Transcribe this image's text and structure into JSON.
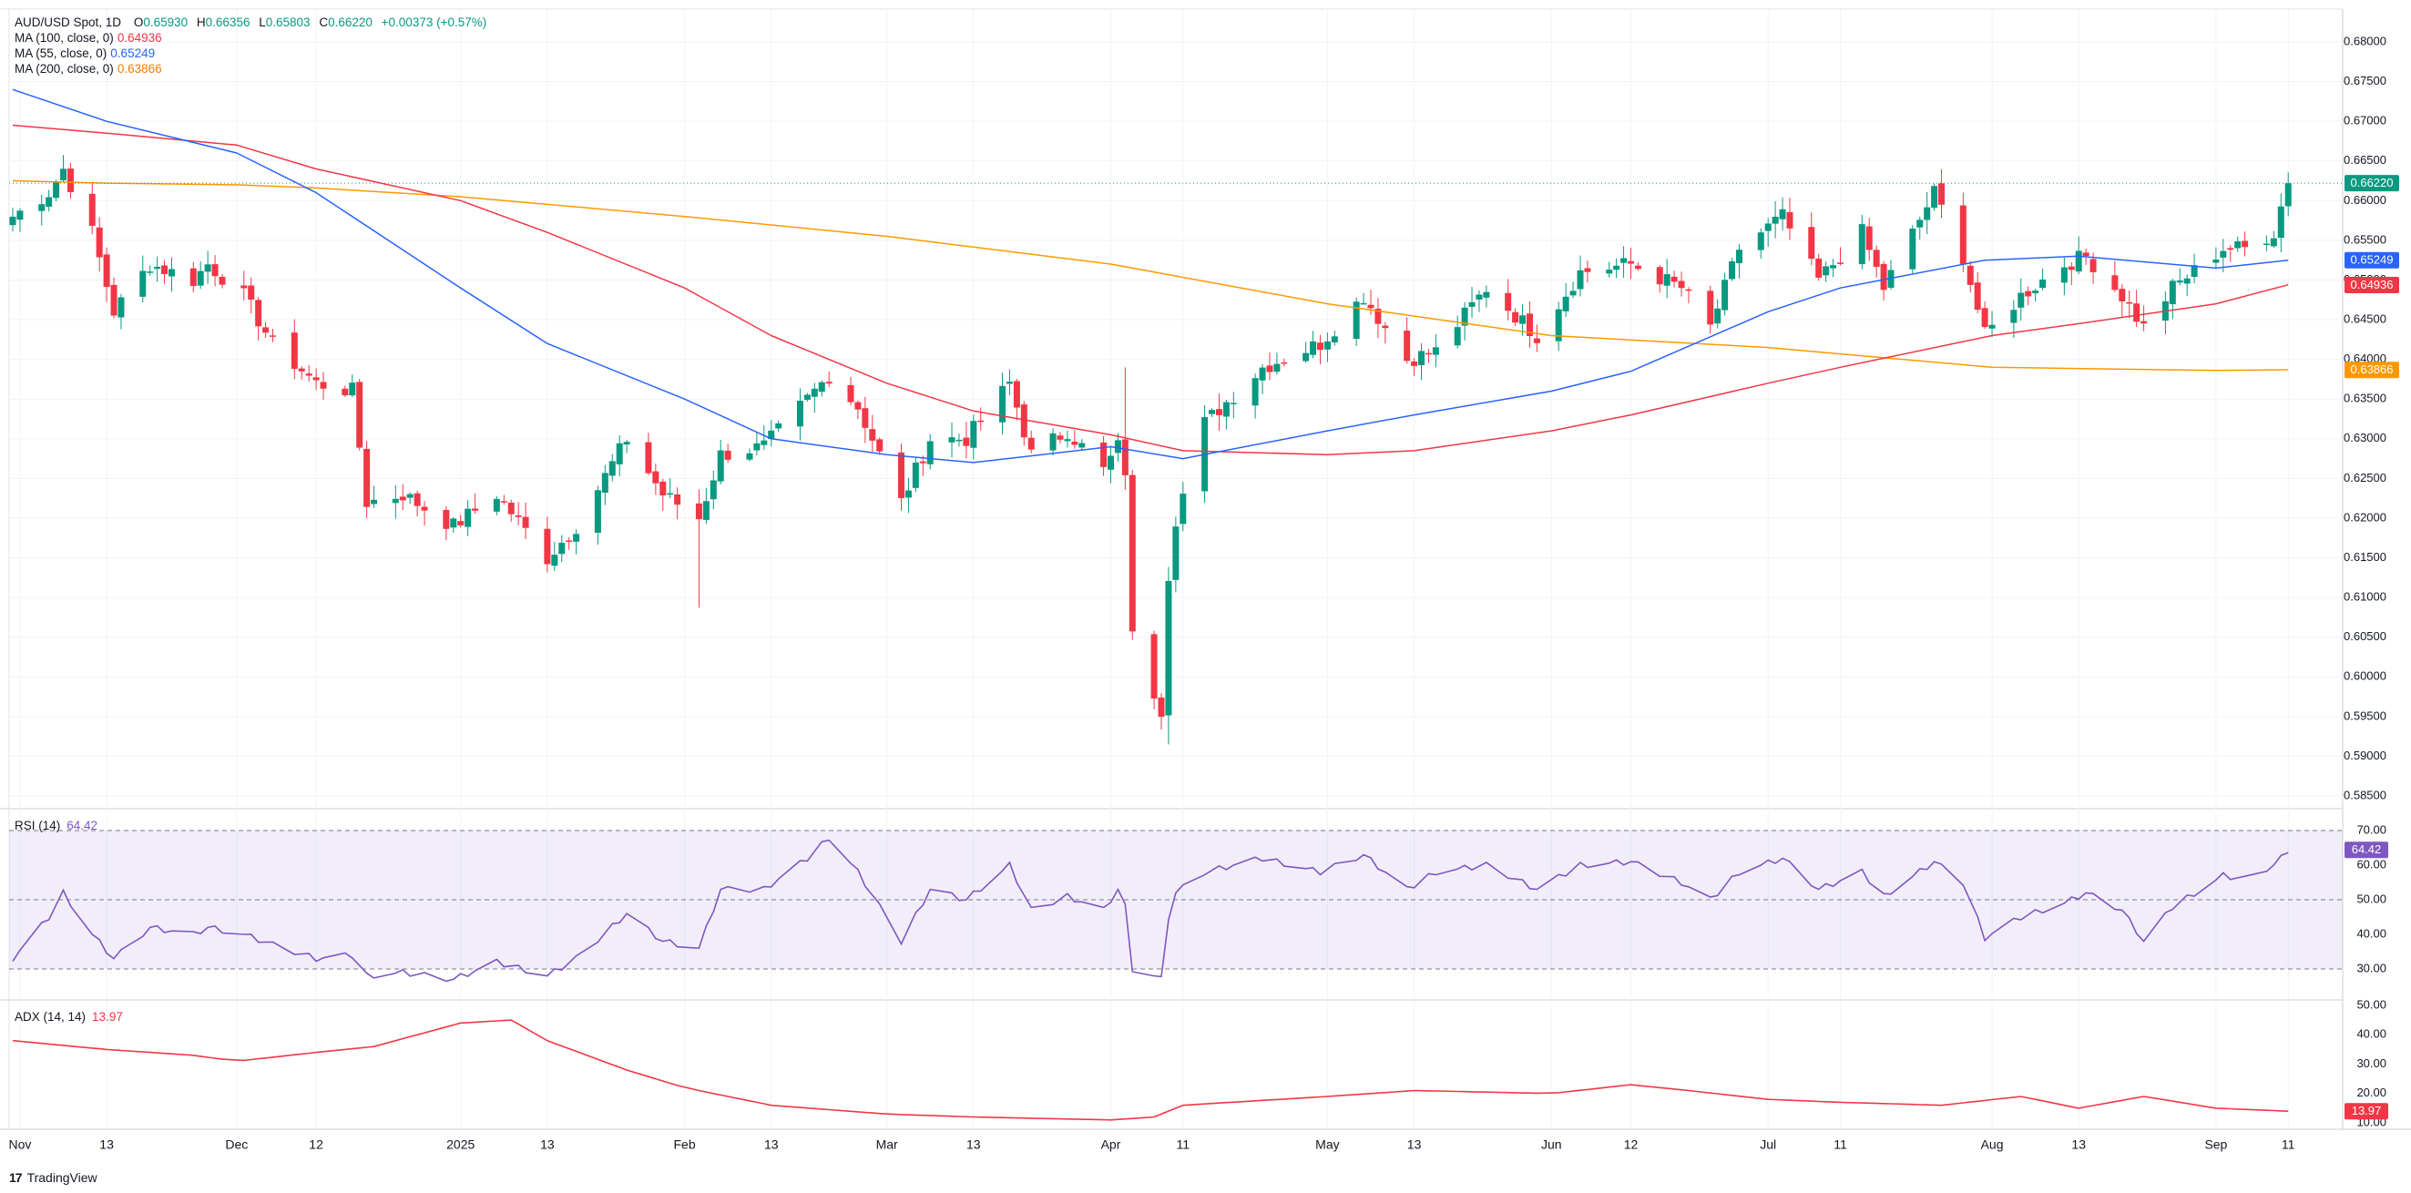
{
  "header": {
    "symbol": "AUD/USD Spot, 1D",
    "o_label": "O",
    "o": "0.65930",
    "h_label": "H",
    "h": "0.66356",
    "l_label": "L",
    "l": "0.65803",
    "c_label": "C",
    "c": "0.66220",
    "change": "+0.00373 (+0.57%)"
  },
  "legends": [
    {
      "label": "MA (100, close, 0)",
      "value": "0.64936",
      "color": "#f23645"
    },
    {
      "label": "MA (55, close, 0)",
      "value": "0.65249",
      "color": "#2962ff"
    },
    {
      "label": "MA (200, close, 0)",
      "value": "0.63866",
      "color": "#ff9800"
    }
  ],
  "rsi_legend": {
    "label": "RSI (14)",
    "value": "64.42",
    "color": "#7e57c2"
  },
  "adx_legend": {
    "label": "ADX (14, 14)",
    "value": "13.97",
    "color": "#f23645"
  },
  "branding": {
    "name": "TradingView"
  },
  "colors": {
    "up": "#089981",
    "down": "#f23645",
    "ma55": "#2962ff",
    "ma100": "#f23645",
    "ma200": "#ff9800",
    "rsi": "#7e57c2",
    "adx": "#f23645",
    "last": "#089981"
  },
  "chart_data": [
    {
      "type": "candlestick",
      "title": "AUD/USD Spot, 1D",
      "ylim": [
        0.5825,
        0.6825
      ],
      "y_ticks": [
        "0.68000",
        "0.67500",
        "0.67000",
        "0.66500",
        "0.66000",
        "0.65500",
        "0.65000",
        "0.64500",
        "0.64000",
        "0.63500",
        "0.63000",
        "0.62500",
        "0.62000",
        "0.61500",
        "0.61000",
        "0.60500",
        "0.60000",
        "0.59500",
        "0.59000",
        "0.58500"
      ],
      "x_ticks": [
        {
          "label": "Nov",
          "date": "2024-11-01"
        },
        {
          "label": "13",
          "date": "2024-11-13"
        },
        {
          "label": "Dec",
          "date": "2024-12-01"
        },
        {
          "label": "12",
          "date": "2024-12-12"
        },
        {
          "label": "2025",
          "date": "2025-01-01"
        },
        {
          "label": "13",
          "date": "2025-01-13"
        },
        {
          "label": "Feb",
          "date": "2025-02-01"
        },
        {
          "label": "13",
          "date": "2025-02-13"
        },
        {
          "label": "Mar",
          "date": "2025-03-01"
        },
        {
          "label": "13",
          "date": "2025-03-13"
        },
        {
          "label": "Apr",
          "date": "2025-04-01"
        },
        {
          "label": "11",
          "date": "2025-04-11"
        },
        {
          "label": "May",
          "date": "2025-05-01"
        },
        {
          "label": "13",
          "date": "2025-05-13"
        },
        {
          "label": "Jun",
          "date": "2025-06-01"
        },
        {
          "label": "12",
          "date": "2025-06-12"
        },
        {
          "label": "Jul",
          "date": "2025-07-01"
        },
        {
          "label": "11",
          "date": "2025-07-11"
        },
        {
          "label": "Aug",
          "date": "2025-08-01"
        },
        {
          "label": "13",
          "date": "2025-08-13"
        },
        {
          "label": "Sep",
          "date": "2025-09-01"
        },
        {
          "label": "11",
          "date": "2025-09-11"
        }
      ],
      "last_labels": [
        {
          "value": "0.66220",
          "color": "#089981"
        },
        {
          "value": "0.65249",
          "color": "#2962ff"
        },
        {
          "value": "0.64936",
          "color": "#f23645"
        },
        {
          "value": "0.63866",
          "color": "#ff9800"
        }
      ],
      "close_anchors": [
        [
          "2024-10-31",
          0.658
        ],
        [
          "2024-11-05",
          0.661
        ],
        [
          "2024-11-07",
          0.664
        ],
        [
          "2024-11-11",
          0.656
        ],
        [
          "2024-11-14",
          0.646
        ],
        [
          "2024-11-19",
          0.652
        ],
        [
          "2024-11-25",
          0.65
        ],
        [
          "2024-11-27",
          0.652
        ],
        [
          "2024-12-02",
          0.648
        ],
        [
          "2024-12-06",
          0.642
        ],
        [
          "2024-12-12",
          0.637
        ],
        [
          "2024-12-17",
          0.636
        ],
        [
          "2024-12-19",
          0.622
        ],
        [
          "2024-12-24",
          0.623
        ],
        [
          "2024-12-31",
          0.619
        ],
        [
          "2025-01-06",
          0.623
        ],
        [
          "2025-01-13",
          0.615
        ],
        [
          "2025-01-17",
          0.619
        ],
        [
          "2025-01-24",
          0.63
        ],
        [
          "2025-01-29",
          0.623
        ],
        [
          "2025-02-03",
          0.62
        ],
        [
          "2025-02-06",
          0.628
        ],
        [
          "2025-02-12",
          0.629
        ],
        [
          "2025-02-18",
          0.635
        ],
        [
          "2025-02-21",
          0.638
        ],
        [
          "2025-02-25",
          0.634
        ],
        [
          "2025-03-03",
          0.622
        ],
        [
          "2025-03-07",
          0.63
        ],
        [
          "2025-03-12",
          0.63
        ],
        [
          "2025-03-18",
          0.637
        ],
        [
          "2025-03-21",
          0.628
        ],
        [
          "2025-03-26",
          0.631
        ],
        [
          "2025-03-31",
          0.626
        ],
        [
          "2025-04-02",
          0.629
        ],
        [
          "2025-04-03",
          0.626
        ],
        [
          "2025-04-04",
          0.605
        ],
        [
          "2025-04-07",
          0.598
        ],
        [
          "2025-04-08",
          0.596
        ],
        [
          "2025-04-09",
          0.613
        ],
        [
          "2025-04-10",
          0.62
        ],
        [
          "2025-04-14",
          0.632
        ],
        [
          "2025-04-22",
          0.639
        ],
        [
          "2025-04-30",
          0.642
        ],
        [
          "2025-05-06",
          0.648
        ],
        [
          "2025-05-12",
          0.64
        ],
        [
          "2025-05-16",
          0.641
        ],
        [
          "2025-05-23",
          0.649
        ],
        [
          "2025-05-30",
          0.643
        ],
        [
          "2025-06-05",
          0.651
        ],
        [
          "2025-06-12",
          0.652
        ],
        [
          "2025-06-19",
          0.649
        ],
        [
          "2025-06-23",
          0.644
        ],
        [
          "2025-06-27",
          0.654
        ],
        [
          "2025-07-03",
          0.658
        ],
        [
          "2025-07-08",
          0.65
        ],
        [
          "2025-07-14",
          0.656
        ],
        [
          "2025-07-17",
          0.649
        ],
        [
          "2025-07-24",
          0.661
        ],
        [
          "2025-07-28",
          0.653
        ],
        [
          "2025-07-31",
          0.643
        ],
        [
          "2025-08-05",
          0.648
        ],
        [
          "2025-08-11",
          0.652
        ],
        [
          "2025-08-14",
          0.653
        ],
        [
          "2025-08-19",
          0.648
        ],
        [
          "2025-08-22",
          0.644
        ],
        [
          "2025-08-26",
          0.649
        ],
        [
          "2025-09-02",
          0.654
        ],
        [
          "2025-09-05",
          0.654
        ],
        [
          "2025-09-09",
          0.656
        ],
        [
          "2025-09-10",
          0.6593
        ],
        [
          "2025-09-11",
          0.6622
        ]
      ],
      "ma55_anchors": [
        [
          "2024-10-31",
          0.674
        ],
        [
          "2024-11-13",
          0.67
        ],
        [
          "2024-12-01",
          0.666
        ],
        [
          "2024-12-12",
          0.661
        ],
        [
          "2025-01-01",
          0.649
        ],
        [
          "2025-01-13",
          0.642
        ],
        [
          "2025-02-01",
          0.635
        ],
        [
          "2025-02-13",
          0.63
        ],
        [
          "2025-03-01",
          0.628
        ],
        [
          "2025-03-13",
          0.627
        ],
        [
          "2025-04-01",
          0.629
        ],
        [
          "2025-04-11",
          0.6275
        ],
        [
          "2025-05-01",
          0.631
        ],
        [
          "2025-05-13",
          0.633
        ],
        [
          "2025-06-01",
          0.636
        ],
        [
          "2025-06-12",
          0.6385
        ],
        [
          "2025-07-01",
          0.646
        ],
        [
          "2025-07-11",
          0.649
        ],
        [
          "2025-07-31",
          0.6525
        ],
        [
          "2025-08-13",
          0.653
        ],
        [
          "2025-09-01",
          0.6515
        ],
        [
          "2025-09-11",
          0.6525
        ]
      ],
      "ma100_anchors": [
        [
          "2024-10-31",
          0.6695
        ],
        [
          "2024-11-13",
          0.6685
        ],
        [
          "2024-12-01",
          0.667
        ],
        [
          "2024-12-12",
          0.664
        ],
        [
          "2025-01-01",
          0.66
        ],
        [
          "2025-01-13",
          0.656
        ],
        [
          "2025-02-01",
          0.649
        ],
        [
          "2025-02-13",
          0.643
        ],
        [
          "2025-03-01",
          0.637
        ],
        [
          "2025-03-13",
          0.6335
        ],
        [
          "2025-04-01",
          0.6305
        ],
        [
          "2025-04-11",
          0.6285
        ],
        [
          "2025-05-01",
          0.628
        ],
        [
          "2025-05-13",
          0.6285
        ],
        [
          "2025-06-01",
          0.631
        ],
        [
          "2025-06-12",
          0.633
        ],
        [
          "2025-07-01",
          0.637
        ],
        [
          "2025-07-11",
          0.639
        ],
        [
          "2025-08-01",
          0.643
        ],
        [
          "2025-08-13",
          0.6445
        ],
        [
          "2025-09-01",
          0.647
        ],
        [
          "2025-09-11",
          0.6494
        ]
      ],
      "ma200_anchors": [
        [
          "2024-10-31",
          0.6625
        ],
        [
          "2024-11-13",
          0.6622
        ],
        [
          "2024-12-01",
          0.662
        ],
        [
          "2024-12-12",
          0.6616
        ],
        [
          "2025-01-01",
          0.6605
        ],
        [
          "2025-02-01",
          0.658
        ],
        [
          "2025-03-01",
          0.6555
        ],
        [
          "2025-04-01",
          0.652
        ],
        [
          "2025-05-01",
          0.647
        ],
        [
          "2025-06-01",
          0.643
        ],
        [
          "2025-07-01",
          0.6415
        ],
        [
          "2025-08-01",
          0.639
        ],
        [
          "2025-09-01",
          0.6386
        ],
        [
          "2025-09-11",
          0.6387
        ]
      ]
    },
    {
      "type": "line",
      "title": "RSI (14)",
      "ylim": [
        22,
        74
      ],
      "y_ticks": [
        "70.00",
        "60.00",
        "50.00",
        "40.00",
        "30.00"
      ],
      "band": [
        30,
        70
      ],
      "last_value": "64.42",
      "anchors": [
        [
          "2024-10-31",
          33
        ],
        [
          "2024-11-05",
          45
        ],
        [
          "2024-11-07",
          52
        ],
        [
          "2024-11-11",
          40
        ],
        [
          "2024-11-14",
          33
        ],
        [
          "2024-11-19",
          42
        ],
        [
          "2024-11-25",
          40
        ],
        [
          "2024-11-27",
          42
        ],
        [
          "2024-12-02",
          40
        ],
        [
          "2024-12-06",
          37
        ],
        [
          "2024-12-12",
          33
        ],
        [
          "2024-12-17",
          34
        ],
        [
          "2024-12-19",
          28
        ],
        [
          "2024-12-24",
          29
        ],
        [
          "2024-12-31",
          27
        ],
        [
          "2025-01-06",
          32
        ],
        [
          "2025-01-13",
          28
        ],
        [
          "2025-01-17",
          33
        ],
        [
          "2025-01-24",
          46
        ],
        [
          "2025-01-29",
          38
        ],
        [
          "2025-02-03",
          36
        ],
        [
          "2025-02-06",
          53
        ],
        [
          "2025-02-12",
          53
        ],
        [
          "2025-02-18",
          62
        ],
        [
          "2025-02-21",
          68
        ],
        [
          "2025-02-25",
          58
        ],
        [
          "2025-03-03",
          38
        ],
        [
          "2025-03-07",
          53
        ],
        [
          "2025-03-12",
          50
        ],
        [
          "2025-03-18",
          60
        ],
        [
          "2025-03-21",
          47
        ],
        [
          "2025-03-26",
          51
        ],
        [
          "2025-03-31",
          47
        ],
        [
          "2025-04-02",
          53
        ],
        [
          "2025-04-03",
          48
        ],
        [
          "2025-04-04",
          30
        ],
        [
          "2025-04-07",
          28
        ],
        [
          "2025-04-08",
          27
        ],
        [
          "2025-04-09",
          45
        ],
        [
          "2025-04-10",
          52
        ],
        [
          "2025-04-14",
          58
        ],
        [
          "2025-04-22",
          62
        ],
        [
          "2025-04-30",
          58
        ],
        [
          "2025-05-06",
          63
        ],
        [
          "2025-05-12",
          53
        ],
        [
          "2025-05-16",
          58
        ],
        [
          "2025-05-23",
          60
        ],
        [
          "2025-05-30",
          53
        ],
        [
          "2025-06-05",
          60
        ],
        [
          "2025-06-12",
          61
        ],
        [
          "2025-06-19",
          55
        ],
        [
          "2025-06-23",
          50
        ],
        [
          "2025-06-27",
          58
        ],
        [
          "2025-07-03",
          62
        ],
        [
          "2025-07-08",
          53
        ],
        [
          "2025-07-14",
          58
        ],
        [
          "2025-07-17",
          51
        ],
        [
          "2025-07-24",
          61
        ],
        [
          "2025-07-28",
          55
        ],
        [
          "2025-07-31",
          39
        ],
        [
          "2025-08-05",
          45
        ],
        [
          "2025-08-11",
          49
        ],
        [
          "2025-08-14",
          52
        ],
        [
          "2025-08-19",
          47
        ],
        [
          "2025-08-22",
          38
        ],
        [
          "2025-08-26",
          48
        ],
        [
          "2025-09-02",
          57
        ],
        [
          "2025-09-05",
          56
        ],
        [
          "2025-09-09",
          60
        ],
        [
          "2025-09-10",
          62
        ],
        [
          "2025-09-11",
          64.42
        ]
      ]
    },
    {
      "type": "line",
      "title": "ADX (14, 14)",
      "ylim": [
        8,
        53
      ],
      "y_ticks": [
        "50.00",
        "40.00",
        "30.00",
        "20.00",
        "10.00"
      ],
      "last_value": "13.97",
      "anchors": [
        [
          "2024-10-31",
          38
        ],
        [
          "2024-11-13",
          35
        ],
        [
          "2024-11-25",
          33
        ],
        [
          "2024-12-01",
          31
        ],
        [
          "2024-12-12",
          34
        ],
        [
          "2024-12-20",
          36
        ],
        [
          "2025-01-01",
          44
        ],
        [
          "2025-01-08",
          45
        ],
        [
          "2025-01-13",
          38
        ],
        [
          "2025-01-24",
          28
        ],
        [
          "2025-02-01",
          22
        ],
        [
          "2025-02-13",
          16
        ],
        [
          "2025-03-01",
          13
        ],
        [
          "2025-03-13",
          12
        ],
        [
          "2025-04-01",
          11
        ],
        [
          "2025-04-07",
          12
        ],
        [
          "2025-04-11",
          16
        ],
        [
          "2025-05-01",
          19
        ],
        [
          "2025-05-13",
          21
        ],
        [
          "2025-06-01",
          20
        ],
        [
          "2025-06-12",
          23
        ],
        [
          "2025-06-20",
          21
        ],
        [
          "2025-07-01",
          18
        ],
        [
          "2025-07-11",
          17
        ],
        [
          "2025-07-25",
          16
        ],
        [
          "2025-08-05",
          19
        ],
        [
          "2025-08-13",
          15
        ],
        [
          "2025-08-22",
          19
        ],
        [
          "2025-09-01",
          15
        ],
        [
          "2025-09-11",
          13.97
        ]
      ]
    }
  ]
}
